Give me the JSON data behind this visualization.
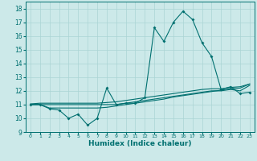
{
  "xlabel": "Humidex (Indice chaleur)",
  "xlim": [
    -0.5,
    23.5
  ],
  "ylim": [
    9,
    18.5
  ],
  "yticks": [
    9,
    10,
    11,
    12,
    13,
    14,
    15,
    16,
    17,
    18
  ],
  "xticks": [
    0,
    1,
    2,
    3,
    4,
    5,
    6,
    7,
    8,
    9,
    10,
    11,
    12,
    13,
    14,
    15,
    16,
    17,
    18,
    19,
    20,
    21,
    22,
    23
  ],
  "bg_color": "#cce9e9",
  "grid_color": "#aad4d4",
  "line_color": "#007070",
  "lines": [
    {
      "x": [
        0,
        1,
        2,
        3,
        4,
        5,
        6,
        7,
        8,
        9,
        10,
        11,
        12,
        13,
        14,
        15,
        16,
        17,
        18,
        19,
        20,
        21,
        22,
        23
      ],
      "y": [
        11.0,
        11.0,
        10.7,
        10.6,
        10.0,
        10.3,
        9.5,
        10.0,
        12.2,
        11.0,
        11.1,
        11.1,
        11.5,
        16.6,
        15.6,
        17.0,
        17.8,
        17.2,
        15.5,
        14.5,
        12.1,
        12.3,
        11.8,
        11.9
      ],
      "marker": true
    },
    {
      "x": [
        0,
        1,
        2,
        3,
        4,
        5,
        6,
        7,
        8,
        9,
        10,
        11,
        12,
        13,
        14,
        15,
        16,
        17,
        18,
        19,
        20,
        21,
        22,
        23
      ],
      "y": [
        11.0,
        11.0,
        10.75,
        10.75,
        10.75,
        10.75,
        10.75,
        10.75,
        10.8,
        10.9,
        11.0,
        11.1,
        11.2,
        11.3,
        11.4,
        11.55,
        11.65,
        11.75,
        11.85,
        11.95,
        12.05,
        12.15,
        12.2,
        12.5
      ],
      "marker": false
    },
    {
      "x": [
        0,
        1,
        2,
        3,
        4,
        5,
        6,
        7,
        8,
        9,
        10,
        11,
        12,
        13,
        14,
        15,
        16,
        17,
        18,
        19,
        20,
        21,
        22,
        23
      ],
      "y": [
        11.05,
        11.1,
        11.1,
        11.1,
        11.1,
        11.1,
        11.1,
        11.1,
        11.15,
        11.2,
        11.3,
        11.4,
        11.5,
        11.6,
        11.7,
        11.8,
        11.9,
        12.0,
        12.1,
        12.15,
        12.15,
        12.25,
        12.3,
        12.5
      ],
      "marker": false
    },
    {
      "x": [
        0,
        1,
        2,
        3,
        4,
        5,
        6,
        7,
        8,
        9,
        10,
        11,
        12,
        13,
        14,
        15,
        16,
        17,
        18,
        19,
        20,
        21,
        22,
        23
      ],
      "y": [
        11.0,
        11.0,
        11.0,
        11.0,
        11.0,
        11.0,
        11.0,
        11.0,
        11.0,
        11.0,
        11.1,
        11.2,
        11.3,
        11.4,
        11.5,
        11.6,
        11.7,
        11.8,
        11.9,
        12.0,
        12.0,
        12.1,
        12.0,
        12.4
      ],
      "marker": false
    }
  ]
}
